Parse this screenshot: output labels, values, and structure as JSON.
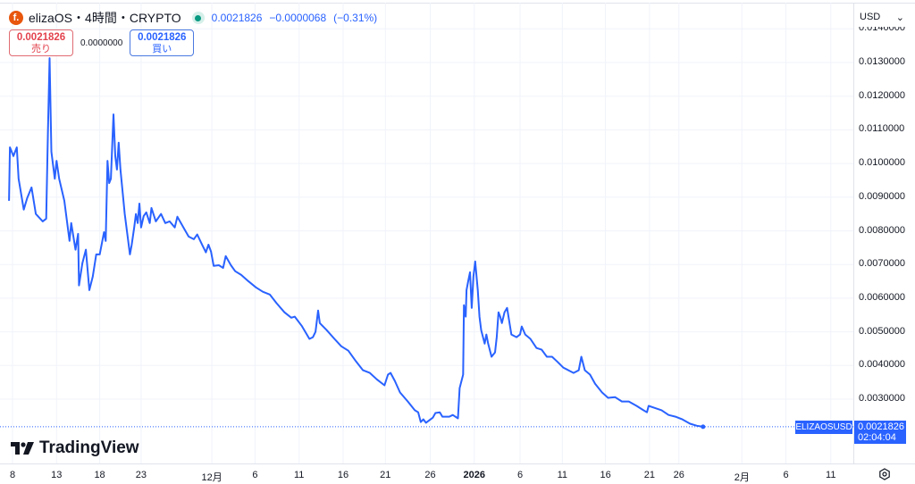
{
  "header": {
    "symbol": "elizaOS",
    "interval": "4時間",
    "exchange": "CRYPTO",
    "separator": "・",
    "last": "0.0021826",
    "change": "−0.0000068",
    "change_pct": "(−0.31%)",
    "logo_letter": "f."
  },
  "trade": {
    "sell_price": "0.0021826",
    "sell_label": "売り",
    "spread": "0.0000000",
    "buy_price": "0.0021826",
    "buy_label": "買い"
  },
  "currency": {
    "selected": "USD",
    "chevron": "⌄"
  },
  "price_tag": {
    "symbol": "ELIZAOSUSD",
    "price": "0.0021826",
    "countdown": "02:04:04"
  },
  "brand": "TradingView",
  "colors": {
    "line": "#2962ff",
    "grid": "#f0f3fa",
    "up": "#089981",
    "down": "#e3424d"
  },
  "chart_data": {
    "type": "line",
    "series_name": "ELIZAOSUSD",
    "x_unit": "days since Nov 8",
    "ylim": [
      0.0018,
      0.0142
    ],
    "y_ticks": [
      "0.0140000",
      "0.0130000",
      "0.0120000",
      "0.0110000",
      "0.0100000",
      "0.0090000",
      "0.0080000",
      "0.0070000",
      "0.0060000",
      "0.0050000",
      "0.0040000",
      "0.0030000"
    ],
    "x_ticks": [
      {
        "label": "8",
        "day": 0
      },
      {
        "label": "13",
        "day": 5.1
      },
      {
        "label": "18",
        "day": 10.1
      },
      {
        "label": "23",
        "day": 14.9
      },
      {
        "label": "12月",
        "day": 23.1
      },
      {
        "label": "6",
        "day": 28.1
      },
      {
        "label": "11",
        "day": 33.2
      },
      {
        "label": "16",
        "day": 38.3
      },
      {
        "label": "21",
        "day": 43.2
      },
      {
        "label": "26",
        "day": 48.4
      },
      {
        "label": "2026",
        "day": 53.5,
        "bold": true
      },
      {
        "label": "6",
        "day": 58.8
      },
      {
        "label": "11",
        "day": 63.7
      },
      {
        "label": "16",
        "day": 68.7
      },
      {
        "label": "21",
        "day": 73.8
      },
      {
        "label": "26",
        "day": 77.2
      },
      {
        "label": "2月",
        "day": 84.5
      },
      {
        "label": "6",
        "day": 89.6
      },
      {
        "label": "11",
        "day": 94.8
      }
    ],
    "last_value": 0.0021826,
    "points": [
      [
        -0.4,
        0.00889
      ],
      [
        -0.3,
        0.01048
      ],
      [
        0.1,
        0.01022
      ],
      [
        0.5,
        0.01048
      ],
      [
        0.7,
        0.00955
      ],
      [
        1.3,
        0.00863
      ],
      [
        1.7,
        0.00897
      ],
      [
        2.2,
        0.00929
      ],
      [
        2.7,
        0.0085
      ],
      [
        3.5,
        0.00828
      ],
      [
        3.9,
        0.00836
      ],
      [
        4.1,
        0.01088
      ],
      [
        4.3,
        0.01313
      ],
      [
        4.5,
        0.01035
      ],
      [
        4.9,
        0.00955
      ],
      [
        5.1,
        0.01008
      ],
      [
        5.4,
        0.00955
      ],
      [
        6.0,
        0.00889
      ],
      [
        6.6,
        0.0077
      ],
      [
        6.8,
        0.00823
      ],
      [
        7.3,
        0.00744
      ],
      [
        7.6,
        0.00791
      ],
      [
        7.7,
        0.00638
      ],
      [
        8.1,
        0.00704
      ],
      [
        8.5,
        0.00744
      ],
      [
        8.9,
        0.00624
      ],
      [
        9.3,
        0.00664
      ],
      [
        9.7,
        0.0073
      ],
      [
        10.1,
        0.0073
      ],
      [
        10.6,
        0.00796
      ],
      [
        10.8,
        0.0077
      ],
      [
        11.0,
        0.01008
      ],
      [
        11.2,
        0.00942
      ],
      [
        11.4,
        0.00955
      ],
      [
        11.7,
        0.01146
      ],
      [
        11.9,
        0.01022
      ],
      [
        12.1,
        0.00982
      ],
      [
        12.3,
        0.01062
      ],
      [
        12.5,
        0.00982
      ],
      [
        13.0,
        0.0085
      ],
      [
        13.6,
        0.0073
      ],
      [
        13.8,
        0.00757
      ],
      [
        14.1,
        0.0081
      ],
      [
        14.3,
        0.0085
      ],
      [
        14.5,
        0.00823
      ],
      [
        14.7,
        0.00881
      ],
      [
        14.9,
        0.0081
      ],
      [
        15.2,
        0.00844
      ],
      [
        15.5,
        0.00855
      ],
      [
        15.9,
        0.00823
      ],
      [
        16.1,
        0.00868
      ],
      [
        16.6,
        0.00828
      ],
      [
        17.2,
        0.0085
      ],
      [
        17.7,
        0.00823
      ],
      [
        18.2,
        0.00828
      ],
      [
        18.8,
        0.0081
      ],
      [
        19.1,
        0.00842
      ],
      [
        19.8,
        0.0081
      ],
      [
        20.4,
        0.00783
      ],
      [
        21.0,
        0.00775
      ],
      [
        21.4,
        0.00789
      ],
      [
        22.0,
        0.00757
      ],
      [
        22.4,
        0.00736
      ],
      [
        22.7,
        0.00759
      ],
      [
        23.0,
        0.00738
      ],
      [
        23.3,
        0.00696
      ],
      [
        23.9,
        0.00698
      ],
      [
        24.4,
        0.0069
      ],
      [
        24.7,
        0.00725
      ],
      [
        25.3,
        0.00698
      ],
      [
        25.8,
        0.0068
      ],
      [
        26.5,
        0.00669
      ],
      [
        27.3,
        0.00651
      ],
      [
        28.2,
        0.00632
      ],
      [
        29.0,
        0.00619
      ],
      [
        29.8,
        0.00611
      ],
      [
        30.6,
        0.00585
      ],
      [
        31.5,
        0.00558
      ],
      [
        32.3,
        0.00542
      ],
      [
        32.7,
        0.00545
      ],
      [
        33.5,
        0.00518
      ],
      [
        34.4,
        0.00479
      ],
      [
        34.8,
        0.00484
      ],
      [
        35.1,
        0.005
      ],
      [
        35.4,
        0.00563
      ],
      [
        35.6,
        0.00526
      ],
      [
        36.4,
        0.00505
      ],
      [
        37.3,
        0.00479
      ],
      [
        38.1,
        0.00457
      ],
      [
        38.9,
        0.00444
      ],
      [
        39.8,
        0.00412
      ],
      [
        40.6,
        0.00386
      ],
      [
        41.4,
        0.00378
      ],
      [
        42.2,
        0.00359
      ],
      [
        43.1,
        0.00341
      ],
      [
        43.5,
        0.00373
      ],
      [
        43.8,
        0.00378
      ],
      [
        44.3,
        0.00354
      ],
      [
        44.9,
        0.0032
      ],
      [
        45.8,
        0.00293
      ],
      [
        46.6,
        0.00267
      ],
      [
        47.0,
        0.00261
      ],
      [
        47.3,
        0.00232
      ],
      [
        47.6,
        0.0024
      ],
      [
        47.9,
        0.0023
      ],
      [
        48.7,
        0.00245
      ],
      [
        49.0,
        0.00259
      ],
      [
        49.5,
        0.00261
      ],
      [
        49.8,
        0.00248
      ],
      [
        50.6,
        0.00248
      ],
      [
        51.0,
        0.00253
      ],
      [
        51.6,
        0.00243
      ],
      [
        51.8,
        0.00333
      ],
      [
        52.2,
        0.00373
      ],
      [
        52.3,
        0.00579
      ],
      [
        52.5,
        0.00545
      ],
      [
        52.6,
        0.00624
      ],
      [
        52.8,
        0.00651
      ],
      [
        53.0,
        0.00677
      ],
      [
        53.2,
        0.00571
      ],
      [
        53.4,
        0.00664
      ],
      [
        53.6,
        0.00709
      ],
      [
        53.9,
        0.00624
      ],
      [
        54.1,
        0.00545
      ],
      [
        54.3,
        0.00505
      ],
      [
        54.7,
        0.00465
      ],
      [
        54.9,
        0.00492
      ],
      [
        55.1,
        0.00465
      ],
      [
        55.5,
        0.00426
      ],
      [
        55.9,
        0.00439
      ],
      [
        56.1,
        0.00484
      ],
      [
        56.3,
        0.00558
      ],
      [
        56.5,
        0.00545
      ],
      [
        56.7,
        0.00526
      ],
      [
        57.0,
        0.00558
      ],
      [
        57.3,
        0.00571
      ],
      [
        57.8,
        0.00492
      ],
      [
        58.4,
        0.00484
      ],
      [
        58.8,
        0.00492
      ],
      [
        59.0,
        0.00516
      ],
      [
        59.4,
        0.00492
      ],
      [
        60.0,
        0.00479
      ],
      [
        60.7,
        0.00452
      ],
      [
        61.3,
        0.00447
      ],
      [
        61.9,
        0.00426
      ],
      [
        62.5,
        0.00426
      ],
      [
        63.1,
        0.00412
      ],
      [
        63.8,
        0.00394
      ],
      [
        64.4,
        0.00386
      ],
      [
        65.0,
        0.00378
      ],
      [
        65.6,
        0.00386
      ],
      [
        65.9,
        0.00426
      ],
      [
        66.3,
        0.00386
      ],
      [
        66.9,
        0.00373
      ],
      [
        67.5,
        0.00346
      ],
      [
        68.3,
        0.0032
      ],
      [
        69.0,
        0.00304
      ],
      [
        69.8,
        0.00306
      ],
      [
        70.6,
        0.00293
      ],
      [
        71.4,
        0.00293
      ],
      [
        72.3,
        0.0028
      ],
      [
        73.1,
        0.00267
      ],
      [
        73.5,
        0.00261
      ],
      [
        73.7,
        0.0028
      ],
      [
        74.4,
        0.00274
      ],
      [
        75.2,
        0.00267
      ],
      [
        76.0,
        0.00253
      ],
      [
        76.8,
        0.00248
      ],
      [
        77.6,
        0.0024
      ],
      [
        78.5,
        0.00227
      ],
      [
        79.3,
        0.00221
      ],
      [
        80.0,
        0.00218
      ]
    ]
  }
}
